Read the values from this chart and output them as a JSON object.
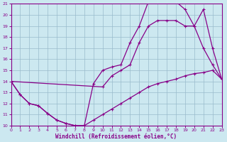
{
  "xlabel": "Windchill (Refroidissement éolien,°C)",
  "xlim": [
    0,
    23
  ],
  "ylim": [
    10,
    21
  ],
  "yticks": [
    10,
    11,
    12,
    13,
    14,
    15,
    16,
    17,
    18,
    19,
    20,
    21
  ],
  "xticks": [
    0,
    1,
    2,
    3,
    4,
    5,
    6,
    7,
    8,
    9,
    10,
    11,
    12,
    13,
    14,
    15,
    16,
    17,
    18,
    19,
    20,
    21,
    22,
    23
  ],
  "bg_color": "#cce8f0",
  "line_color": "#880088",
  "grid_color": "#99bbcc",
  "curve1_x": [
    0,
    1,
    2,
    3,
    4,
    5,
    6,
    7,
    8,
    9,
    10,
    11,
    12,
    13,
    14,
    15,
    16,
    17,
    18,
    19,
    20,
    21,
    22,
    23
  ],
  "curve1_y": [
    14.0,
    12.8,
    12.0,
    11.8,
    11.1,
    10.5,
    10.2,
    10.0,
    10.0,
    10.5,
    11.0,
    11.5,
    12.0,
    12.5,
    13.0,
    13.5,
    13.8,
    14.0,
    14.2,
    14.5,
    14.7,
    14.8,
    15.0,
    14.2
  ],
  "curve2_x": [
    0,
    1,
    2,
    3,
    4,
    5,
    6,
    7,
    8,
    9,
    10,
    11,
    12,
    13,
    14,
    15,
    16,
    17,
    18,
    19,
    20,
    21,
    22,
    23
  ],
  "curve2_y": [
    14.0,
    12.8,
    12.0,
    11.8,
    11.1,
    10.5,
    10.2,
    10.0,
    10.0,
    13.8,
    15.0,
    15.3,
    15.5,
    17.5,
    19.0,
    21.2,
    21.2,
    21.2,
    21.2,
    20.5,
    19.0,
    17.0,
    15.5,
    14.2
  ],
  "curve3_x": [
    0,
    10,
    11,
    12,
    13,
    14,
    15,
    16,
    17,
    18,
    19,
    20,
    21,
    22,
    23
  ],
  "curve3_y": [
    14.0,
    13.5,
    14.5,
    15.0,
    15.5,
    17.5,
    19.0,
    19.5,
    19.5,
    19.5,
    19.0,
    19.0,
    20.5,
    17.0,
    14.2
  ]
}
